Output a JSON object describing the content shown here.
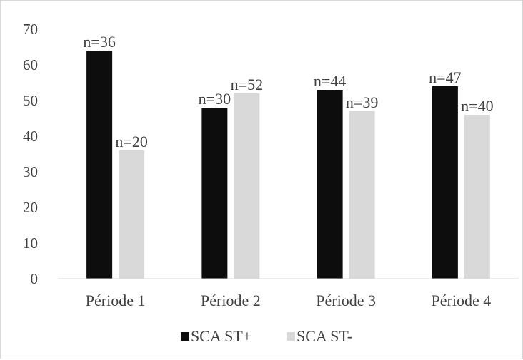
{
  "chart_data": {
    "type": "bar",
    "categories": [
      "Période 1",
      "Période 2",
      "Période 3",
      "Période 4"
    ],
    "series": [
      {
        "name": "SCA ST+",
        "color": "#0d0d0d",
        "values": [
          64,
          48,
          53,
          54
        ],
        "labels": [
          "n=36",
          "n=30",
          "n=44",
          "n=47"
        ]
      },
      {
        "name": "SCA ST-",
        "color": "#d9d9d9",
        "values": [
          36,
          52,
          47,
          46
        ],
        "labels": [
          "n=20",
          "n=52",
          "n=39",
          "n=40"
        ]
      }
    ],
    "ylim": [
      0,
      70
    ],
    "yticks": [
      0,
      10,
      20,
      30,
      40,
      50,
      60,
      70
    ],
    "grid": false,
    "legend_position": "bottom"
  }
}
